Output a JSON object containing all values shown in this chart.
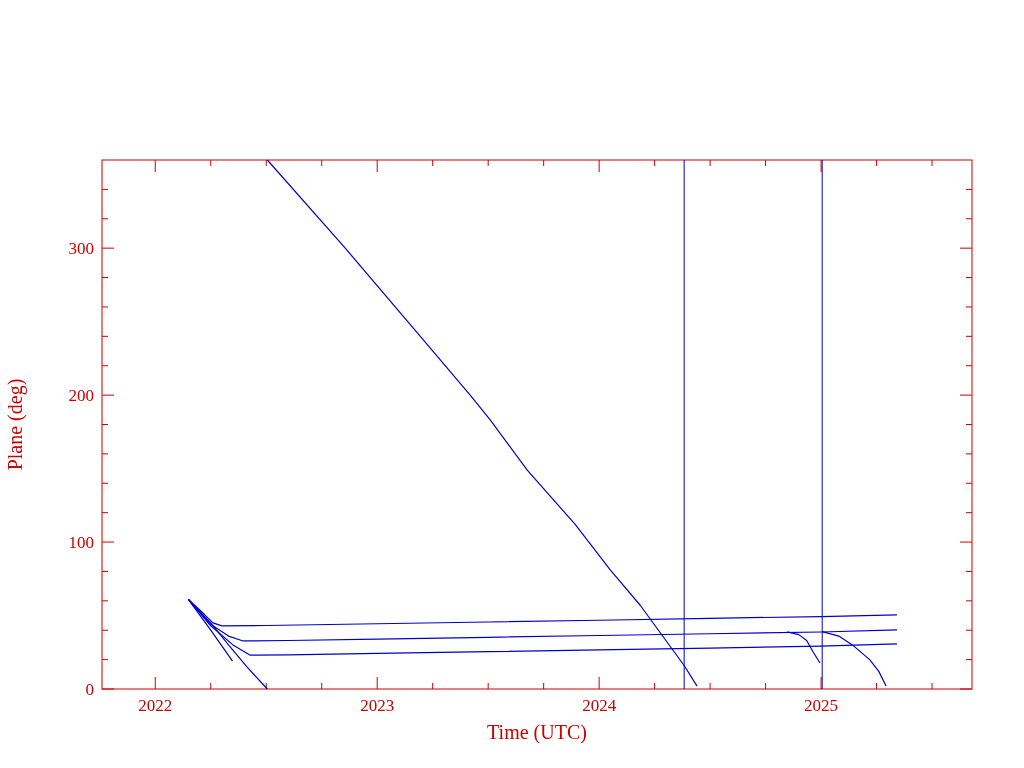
{
  "chart_data": {
    "type": "line",
    "xlabel": "Time (UTC)",
    "ylabel": "Plane (deg)",
    "xlim": [
      2021.76,
      2025.68
    ],
    "ylim": [
      0,
      360
    ],
    "xticks": [
      2022,
      {
        "value": 2022.25,
        "label": null
      },
      {
        "value": 2022.5,
        "label": null
      },
      {
        "value": 2022.75,
        "label": null
      },
      2023,
      {
        "value": 2023.25,
        "label": null
      },
      {
        "value": 2023.5,
        "label": null
      },
      {
        "value": 2023.75,
        "label": null
      },
      2024,
      {
        "value": 2024.25,
        "label": null
      },
      {
        "value": 2024.5,
        "label": null
      },
      {
        "value": 2024.75,
        "label": null
      },
      2025,
      {
        "value": 2025.25,
        "label": null
      },
      {
        "value": 2025.5,
        "label": null
      }
    ],
    "yticks": [
      0,
      {
        "value": 20,
        "label": null
      },
      {
        "value": 40,
        "label": null
      },
      {
        "value": 60,
        "label": null
      },
      {
        "value": 80,
        "label": null
      },
      100,
      {
        "value": 120,
        "label": null
      },
      {
        "value": 140,
        "label": null
      },
      {
        "value": 160,
        "label": null
      },
      {
        "value": 180,
        "label": null
      },
      200,
      {
        "value": 220,
        "label": null
      },
      {
        "value": 240,
        "label": null
      },
      {
        "value": 260,
        "label": null
      },
      {
        "value": 280,
        "label": null
      },
      300,
      {
        "value": 320,
        "label": null
      },
      {
        "value": 340,
        "label": null
      }
    ],
    "grid": false,
    "marker": "none",
    "line_style": "solid",
    "ref_lines": [
      {
        "axis": "x",
        "value": 2024.383,
        "color": "#0000cc"
      },
      {
        "axis": "x",
        "value": 2025.005,
        "color": "#0000cc"
      }
    ],
    "series": [
      {
        "color": "#0000cc",
        "x": [
          2022.149,
          2022.25,
          2022.33,
          2022.413,
          2022.505,
          null,
          2022.505,
          2022.856,
          2023.2,
          2023.419,
          2023.51,
          2023.676,
          2023.892,
          2024.05,
          2024.185,
          2024.383,
          2024.441
        ],
        "values": [
          61,
          45,
          30,
          15,
          0,
          null,
          360,
          300,
          239,
          200,
          183,
          149,
          112,
          81,
          57,
          16,
          2
        ]
      },
      {
        "color": "#0000cc",
        "x": [
          2022.149,
          2022.25,
          2022.348
        ],
        "values": [
          61,
          40,
          19
        ]
      },
      {
        "color": "#0000cc",
        "x": [
          2022.149,
          2022.22,
          2022.26,
          2022.3,
          2022.5,
          2023,
          2023.5,
          2024,
          2024.5,
          2025,
          2025.342
        ],
        "values": [
          61,
          51,
          45,
          43,
          43.2,
          44.4,
          45.6,
          46.8,
          48.1,
          49.3,
          50.5
        ]
      },
      {
        "color": "#0000cc",
        "x": [
          2022.149,
          2022.25,
          2022.33,
          2022.396,
          2022.6,
          2023,
          2023.5,
          2024,
          2024.5,
          2025,
          2025.342
        ],
        "values": [
          61,
          44,
          36,
          32.7,
          33,
          34,
          35.2,
          36.4,
          37.6,
          38.8,
          40.2
        ]
      },
      {
        "color": "#0000cc",
        "x": [
          2022.149,
          2022.25,
          2022.35,
          2022.428,
          2022.6,
          2023,
          2023.5,
          2024,
          2024.5,
          2025,
          2025.342
        ],
        "values": [
          61,
          43,
          30,
          23,
          23.2,
          24.2,
          25.4,
          26.6,
          27.8,
          29.2,
          30.7
        ]
      },
      {
        "color": "#0000cc",
        "x": [
          2024.847,
          2024.9,
          2024.935,
          2024.965,
          2024.995
        ],
        "values": [
          38.9,
          37,
          33,
          25,
          17.7
        ]
      },
      {
        "color": "#0000cc",
        "x": [
          2025.005,
          2025.08,
          2025.141,
          2025.22,
          2025.26,
          2025.293
        ],
        "values": [
          39,
          36,
          30,
          19.8,
          12,
          2
        ]
      }
    ]
  }
}
